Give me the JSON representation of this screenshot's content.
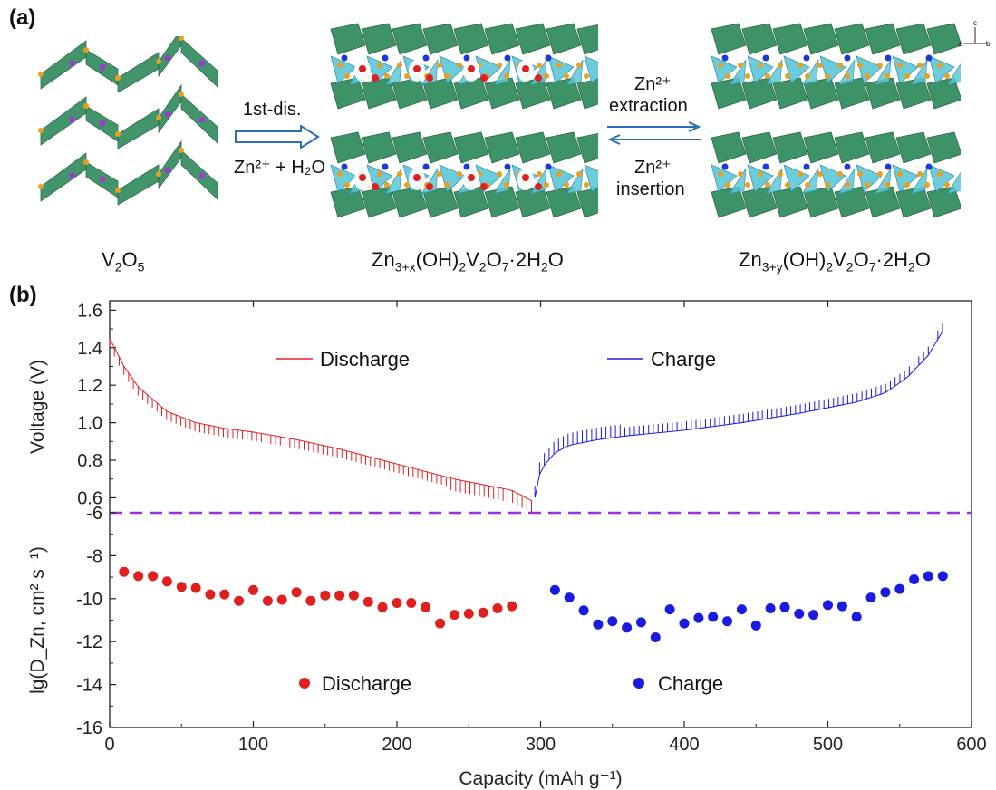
{
  "panel_a": {
    "label": "(a)",
    "structures": [
      {
        "formula_main": "V",
        "sub1": "2",
        "mid": "O",
        "sub2": "5"
      },
      {
        "text": "Zn3+x(OH)2V2O7·2H2O"
      },
      {
        "text": "Zn3+y(OH)2V2O7·2H2O"
      }
    ],
    "arrow1": {
      "line1": "1st-dis.",
      "line2": "Zn²⁺ + H₂O"
    },
    "arrow2": {
      "top1": "Zn²⁺",
      "top2": "extraction",
      "bottom1": "Zn²⁺",
      "bottom2": "insertion"
    },
    "axes_icon": {
      "c": "c",
      "a": "a",
      "b": "b"
    }
  },
  "panel_b": {
    "label": "(b)"
  },
  "colors": {
    "discharge": "#e02020",
    "charge": "#1a1ae0",
    "divider": "#9b30e0",
    "octa": "#2e8a5a",
    "tetra": "#5cc8d8",
    "atom_gold": "#e8a020",
    "atom_red": "#e02020",
    "atom_blue": "#1a3ad8",
    "atom_purple": "#9a40c8"
  },
  "chart_data": {
    "type": "line+scatter",
    "xlabel": "Capacity (mAh g⁻¹)",
    "xlim": [
      0,
      600
    ],
    "xticks": [
      0,
      100,
      200,
      300,
      400,
      500,
      600
    ],
    "top": {
      "ylabel": "Voltage (V)",
      "ylim": [
        0.52,
        1.65
      ],
      "yticks": [
        0.6,
        0.8,
        1.0,
        1.2,
        1.4,
        1.6
      ],
      "ytick_labels": [
        "0.6",
        "0.8",
        "1.0",
        "1.2",
        "1.4",
        "1.6"
      ],
      "legend": {
        "discharge": "Discharge",
        "charge": "Charge"
      },
      "series": [
        {
          "name": "Discharge",
          "x": [
            0,
            10,
            20,
            40,
            60,
            80,
            100,
            130,
            160,
            200,
            240,
            260,
            280,
            295
          ],
          "y": [
            1.45,
            1.3,
            1.19,
            1.06,
            1.0,
            0.97,
            0.95,
            0.91,
            0.86,
            0.78,
            0.7,
            0.67,
            0.64,
            0.58
          ]
        },
        {
          "name": "Charge",
          "x": [
            296,
            300,
            310,
            320,
            340,
            360,
            400,
            440,
            480,
            520,
            540,
            555,
            570,
            580
          ],
          "y": [
            0.6,
            0.75,
            0.84,
            0.88,
            0.91,
            0.93,
            0.96,
            1.0,
            1.05,
            1.11,
            1.16,
            1.24,
            1.36,
            1.49
          ]
        }
      ]
    },
    "bottom": {
      "ylabel": "lg(D_Zn, cm² s⁻¹)",
      "ylim": [
        -16,
        -6
      ],
      "yticks": [
        -16,
        -14,
        -12,
        -10,
        -8,
        -6
      ],
      "ytick_labels": [
        "-16",
        "-14",
        "-12",
        "-10",
        "-8",
        "-6"
      ],
      "legend": {
        "discharge": "Discharge",
        "charge": "Charge"
      },
      "series": [
        {
          "name": "Discharge",
          "x": [
            10,
            20,
            30,
            40,
            50,
            60,
            70,
            80,
            90,
            100,
            110,
            120,
            130,
            140,
            150,
            160,
            170,
            180,
            190,
            200,
            210,
            220,
            230,
            240,
            250,
            260,
            270,
            280
          ],
          "y": [
            -8.75,
            -8.95,
            -8.95,
            -9.2,
            -9.45,
            -9.5,
            -9.8,
            -9.8,
            -10.1,
            -9.6,
            -10.1,
            -10.05,
            -9.7,
            -10.1,
            -9.85,
            -9.85,
            -9.85,
            -10.15,
            -10.4,
            -10.2,
            -10.2,
            -10.4,
            -11.15,
            -10.75,
            -10.7,
            -10.65,
            -10.45,
            -10.35
          ]
        },
        {
          "name": "Charge",
          "x": [
            310,
            320,
            330,
            340,
            350,
            360,
            370,
            380,
            390,
            400,
            410,
            420,
            430,
            440,
            450,
            460,
            470,
            480,
            490,
            500,
            510,
            520,
            530,
            540,
            550,
            560,
            570,
            580
          ],
          "y": [
            -9.6,
            -9.95,
            -10.55,
            -11.2,
            -11.05,
            -11.35,
            -11.1,
            -11.8,
            -10.5,
            -11.15,
            -10.9,
            -10.85,
            -11.05,
            -10.5,
            -11.25,
            -10.45,
            -10.4,
            -10.7,
            -10.75,
            -10.3,
            -10.35,
            -10.85,
            -9.95,
            -9.7,
            -9.55,
            -9.1,
            -8.95,
            -8.95
          ]
        }
      ]
    }
  }
}
